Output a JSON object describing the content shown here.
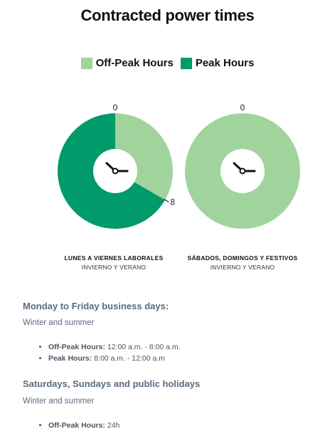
{
  "title": "Contracted power times",
  "legend": [
    {
      "label": "Off-Peak Hours",
      "color": "#a0d49c"
    },
    {
      "label": "Peak Hours",
      "color": "#009a6b"
    }
  ],
  "chart_data": [
    {
      "type": "pie",
      "categories": [
        "Off-Peak Hours",
        "Peak Hours"
      ],
      "values": [
        8,
        16
      ],
      "tick_labels": [
        "0",
        "8"
      ],
      "caption": "LUNES A VIERNES LABORALES",
      "subcaption": "INVIERNO Y VERANO"
    },
    {
      "type": "pie",
      "categories": [
        "Off-Peak Hours"
      ],
      "values": [
        24
      ],
      "tick_labels": [
        "0"
      ],
      "caption": "SÁBADOS, DOMINGOS Y FESTIVOS",
      "subcaption": "INVIERNO Y VERANO"
    }
  ],
  "sections": [
    {
      "title": "Monday to Friday business days:",
      "subtitle": "Winter and summer",
      "items": [
        {
          "label": "Off-Peak Hours:",
          "value": " 12:00 a.m. - 8:00 a.m."
        },
        {
          "label": "Peak Hours:",
          "value": "  8:00 a.m. - 12:00 a.m"
        }
      ]
    },
    {
      "title": "Saturdays, Sundays and public holidays",
      "subtitle": "Winter and summer",
      "items": [
        {
          "label": "Off-Peak Hours:",
          "value": " 24h"
        }
      ]
    }
  ]
}
